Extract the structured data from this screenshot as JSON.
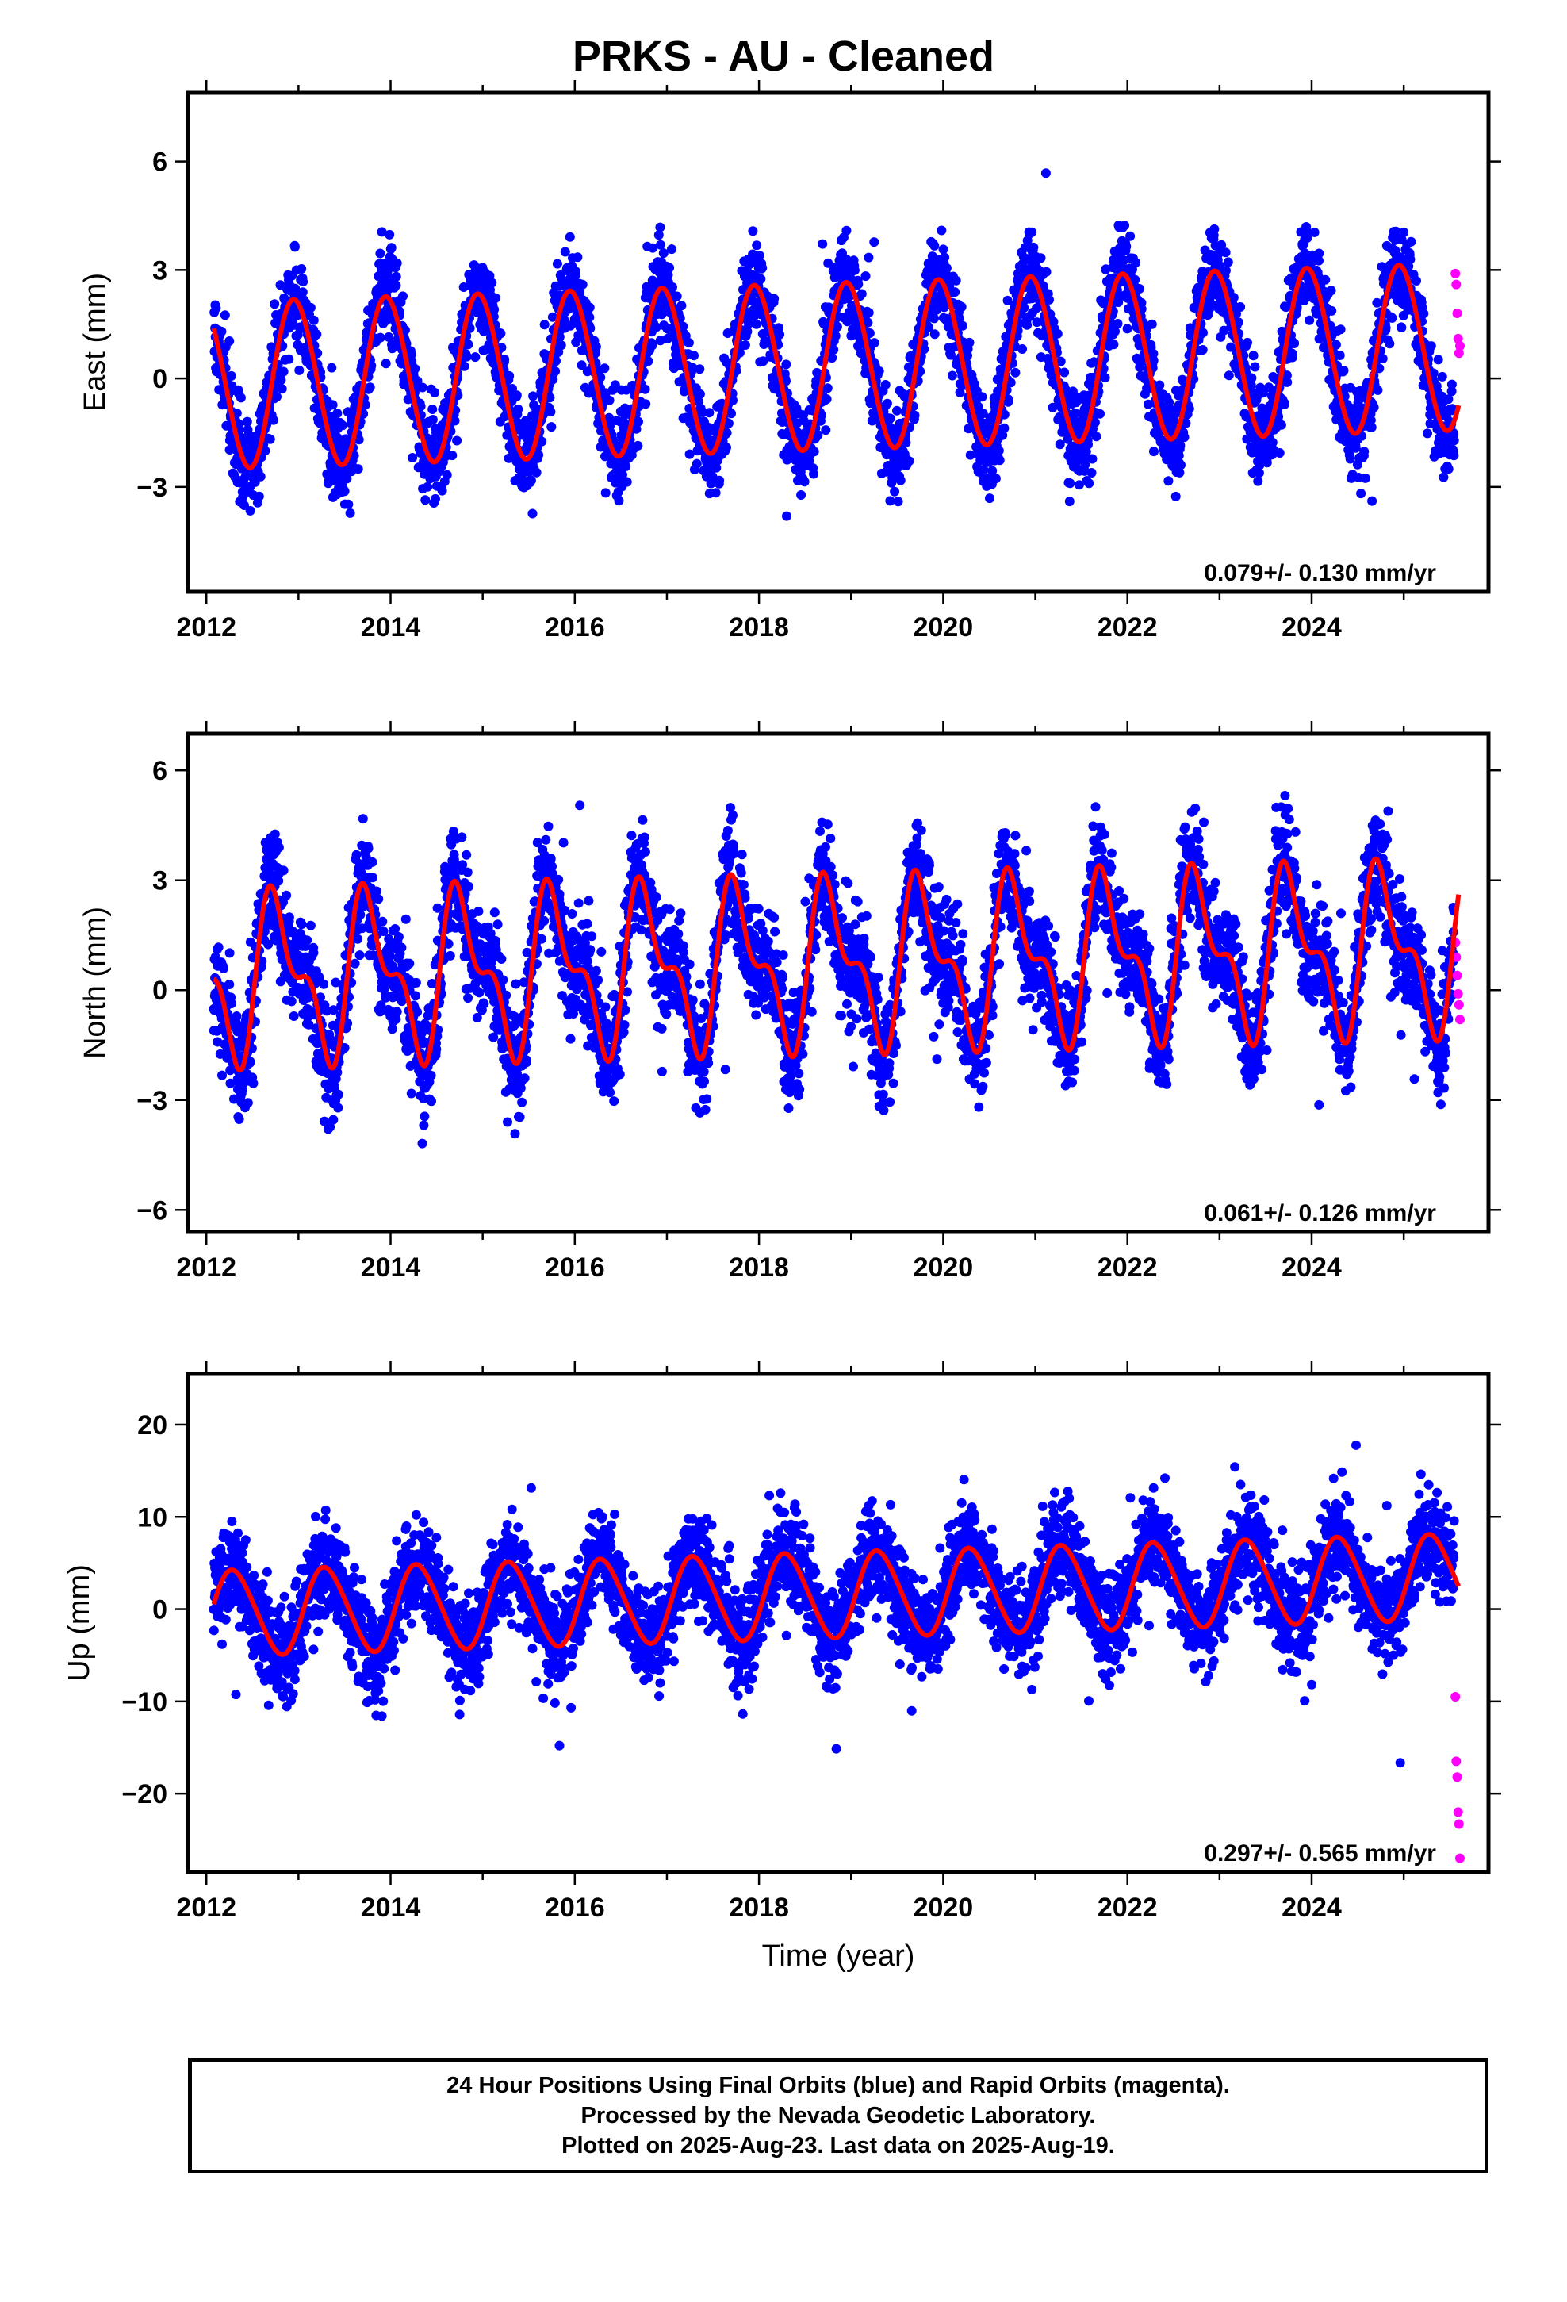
{
  "title": "PRKS  - AU - Cleaned",
  "footer": {
    "line1": "24 Hour Positions Using Final Orbits (blue) and Rapid Orbits (magenta).",
    "line2": "Processed by the Nevada Geodetic Laboratory.",
    "line3": "Plotted on 2025-Aug-23. Last data on 2025-Aug-19."
  },
  "colors": {
    "final_orbits": "#0000ff",
    "rapid_orbits": "#ff00ff",
    "model": "#ff0000"
  },
  "chart_data": [
    {
      "type": "scatter",
      "ylabel": "East (mm)",
      "xlabel": "",
      "xlim": [
        2011.8,
        2025.92
      ],
      "ylim": [
        -5.9,
        7.9
      ],
      "xticks": [
        2012,
        2014,
        2016,
        2018,
        2020,
        2022,
        2024
      ],
      "yticks": [
        -3,
        0,
        3,
        6
      ],
      "rate_text": "0.079+/- 0.130 mm/yr",
      "grid": false,
      "series_final": {
        "x_start": 2012.08,
        "x_end": 2025.55,
        "annual_amp": 2.3,
        "semi_amp": 0.1,
        "phase": 0.71,
        "trend": 0.079,
        "noise": 1.0,
        "offset": -0.2
      },
      "series_rapid": {
        "x": [
          2025.56,
          2025.57,
          2025.58,
          2025.59,
          2025.6,
          2025.61
        ],
        "y": [
          2.9,
          2.6,
          1.8,
          1.1,
          0.7,
          0.9
        ]
      }
    },
    {
      "type": "scatter",
      "ylabel": "North (mm)",
      "xlabel": "",
      "xlim": [
        2011.8,
        2025.92
      ],
      "ylim": [
        -6.6,
        7.0
      ],
      "xticks": [
        2012,
        2014,
        2016,
        2018,
        2020,
        2022,
        2024
      ],
      "yticks": [
        -6,
        -3,
        0,
        3,
        6
      ],
      "rate_text": "0.061+/- 0.126 mm/yr",
      "grid": false,
      "series_final": {
        "x_start": 2012.08,
        "x_end": 2025.55,
        "annual_amp": 1.9,
        "semi_amp": 1.0,
        "phase": 0.53,
        "trend": 0.061,
        "noise": 1.2,
        "offset": 0.3
      },
      "series_rapid": {
        "x": [
          2025.56,
          2025.57,
          2025.58,
          2025.59,
          2025.6,
          2025.61
        ],
        "y": [
          1.3,
          0.9,
          0.4,
          -0.1,
          -0.4,
          -0.8
        ]
      }
    },
    {
      "type": "scatter",
      "ylabel": "Up (mm)",
      "xlabel": "Time (year)",
      "xlim": [
        2011.8,
        2025.92
      ],
      "ylim": [
        -28.5,
        25.5
      ],
      "xticks": [
        2012,
        2014,
        2016,
        2018,
        2020,
        2022,
        2024
      ],
      "yticks": [
        -20,
        -10,
        0,
        10,
        20
      ],
      "rate_text": "0.297+/- 0.565 mm/yr",
      "grid": false,
      "series_final": {
        "x_start": 2012.08,
        "x_end": 2025.55,
        "annual_amp": 4.6,
        "semi_amp": 0.4,
        "phase": 0.05,
        "trend": 0.297,
        "noise": 4.2,
        "offset": -0.5
      },
      "series_rapid": {
        "x": [
          2025.56,
          2025.57,
          2025.58,
          2025.59,
          2025.6,
          2025.61
        ],
        "y": [
          -9.5,
          -16.5,
          -18.2,
          -22.0,
          -23.3,
          -27.0
        ]
      }
    }
  ]
}
